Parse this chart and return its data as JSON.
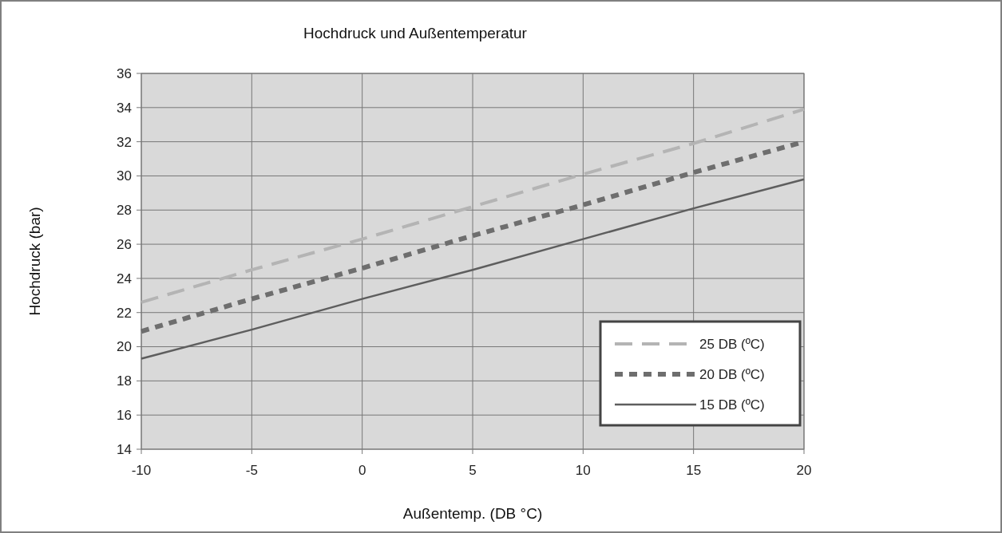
{
  "chart_data": {
    "type": "line",
    "title": "Hochdruck und Außentemperatur",
    "xlabel": "Außentemp. (DB °C)",
    "ylabel": "Hochdruck (bar)",
    "x": [
      -10,
      -5,
      0,
      5,
      10,
      15,
      20
    ],
    "series": [
      {
        "name": "25 DB (ºC)",
        "color": "#b4b4b4",
        "line_style": "dashed",
        "values": [
          22.6,
          24.5,
          26.3,
          28.2,
          30.1,
          31.9,
          33.9
        ]
      },
      {
        "name": "20 DB (ºC)",
        "color": "#6e6e6e",
        "line_style": "dotted",
        "values": [
          20.9,
          22.8,
          24.6,
          26.5,
          28.3,
          30.2,
          32.0
        ]
      },
      {
        "name": "15 DB (ºC)",
        "color": "#5e5e5e",
        "line_style": "solid",
        "values": [
          19.3,
          21.0,
          22.8,
          24.5,
          26.3,
          28.1,
          29.8
        ]
      }
    ],
    "xlim": [
      -10,
      20
    ],
    "xticks": [
      -10,
      -5,
      0,
      5,
      10,
      15,
      20
    ],
    "ylim": [
      14,
      36
    ],
    "yticks": [
      14,
      16,
      18,
      20,
      22,
      24,
      26,
      28,
      30,
      32,
      34,
      36
    ],
    "grid": true,
    "legend": "bottom right",
    "marker": "none"
  }
}
